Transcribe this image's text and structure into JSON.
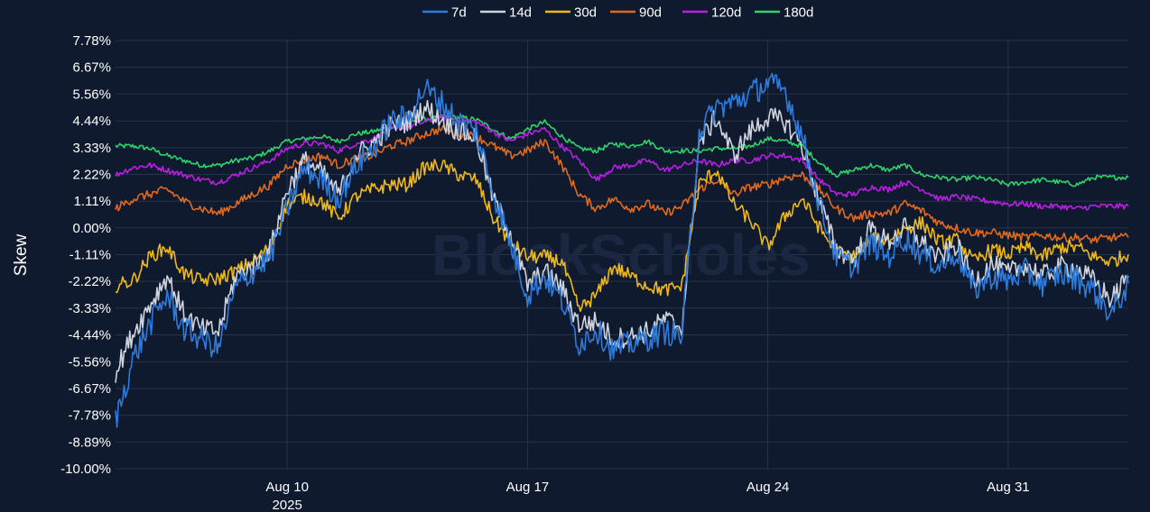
{
  "watermark": "BlockScholes",
  "chart_data": {
    "type": "line",
    "title": "",
    "xlabel": "",
    "ylabel": "Skew",
    "x_start": "2025-08-05",
    "x_end": "2025-09-03",
    "x_range": [
      "2025-08-05T00:00",
      "2025-09-03T12:00"
    ],
    "ylim": [
      -10.0,
      8.0
    ],
    "grid": true,
    "legend_position": "top-center",
    "y_ticks": [
      {
        "value": 7.78,
        "label": "7.78%"
      },
      {
        "value": 6.67,
        "label": "6.67%"
      },
      {
        "value": 5.56,
        "label": "5.56%"
      },
      {
        "value": 4.44,
        "label": "4.44%"
      },
      {
        "value": 3.33,
        "label": "3.33%"
      },
      {
        "value": 2.22,
        "label": "2.22%"
      },
      {
        "value": 1.11,
        "label": "1.11%"
      },
      {
        "value": 0.0,
        "label": "0.00%"
      },
      {
        "value": -1.11,
        "label": "-1.11%"
      },
      {
        "value": -2.22,
        "label": "-2.22%"
      },
      {
        "value": -3.33,
        "label": "-3.33%"
      },
      {
        "value": -4.44,
        "label": "-4.44%"
      },
      {
        "value": -5.56,
        "label": "-5.56%"
      },
      {
        "value": -6.67,
        "label": "-6.67%"
      },
      {
        "value": -7.78,
        "label": "-7.78%"
      },
      {
        "value": -8.89,
        "label": "-8.89%"
      },
      {
        "value": -10.0,
        "label": "-10.00%"
      }
    ],
    "x_ticks": [
      {
        "date": "2025-08-10",
        "label": "Aug 10",
        "sublabel": "2025"
      },
      {
        "date": "2025-08-17",
        "label": "Aug 17",
        "sublabel": ""
      },
      {
        "date": "2025-08-24",
        "label": "Aug 24",
        "sublabel": ""
      },
      {
        "date": "2025-08-31",
        "label": "Aug 31",
        "sublabel": ""
      }
    ],
    "x": [
      "2025-08-05T00:00",
      "2025-08-05T12:00",
      "2025-08-06T00:00",
      "2025-08-06T12:00",
      "2025-08-07T00:00",
      "2025-08-07T12:00",
      "2025-08-08T00:00",
      "2025-08-08T12:00",
      "2025-08-09T00:00",
      "2025-08-09T12:00",
      "2025-08-10T00:00",
      "2025-08-10T12:00",
      "2025-08-11T00:00",
      "2025-08-11T12:00",
      "2025-08-12T00:00",
      "2025-08-12T12:00",
      "2025-08-13T00:00",
      "2025-08-13T12:00",
      "2025-08-14T00:00",
      "2025-08-14T12:00",
      "2025-08-15T00:00",
      "2025-08-15T12:00",
      "2025-08-16T00:00",
      "2025-08-16T12:00",
      "2025-08-17T00:00",
      "2025-08-17T12:00",
      "2025-08-18T00:00",
      "2025-08-18T12:00",
      "2025-08-19T00:00",
      "2025-08-19T12:00",
      "2025-08-20T00:00",
      "2025-08-20T12:00",
      "2025-08-21T00:00",
      "2025-08-21T12:00",
      "2025-08-22T00:00",
      "2025-08-22T12:00",
      "2025-08-23T00:00",
      "2025-08-23T12:00",
      "2025-08-24T00:00",
      "2025-08-24T12:00",
      "2025-08-25T00:00",
      "2025-08-25T12:00",
      "2025-08-26T00:00",
      "2025-08-26T12:00",
      "2025-08-27T00:00",
      "2025-08-27T12:00",
      "2025-08-28T00:00",
      "2025-08-28T12:00",
      "2025-08-29T00:00",
      "2025-08-29T12:00",
      "2025-08-30T00:00",
      "2025-08-30T12:00",
      "2025-08-31T00:00",
      "2025-08-31T12:00",
      "2025-09-01T00:00",
      "2025-09-01T12:00",
      "2025-09-02T00:00",
      "2025-09-02T12:00",
      "2025-09-03T00:00",
      "2025-09-03T12:00"
    ],
    "series": [
      {
        "name": "7d",
        "color": "#2e7bdc",
        "values": [
          -8.0,
          -5.5,
          -4.0,
          -2.8,
          -4.2,
          -4.6,
          -5.0,
          -2.5,
          -1.8,
          -1.2,
          0.8,
          2.5,
          2.0,
          1.2,
          2.6,
          3.3,
          4.4,
          4.6,
          5.8,
          5.2,
          4.4,
          4.0,
          1.5,
          -0.6,
          -2.8,
          -2.0,
          -3.0,
          -4.8,
          -4.2,
          -5.1,
          -4.8,
          -4.6,
          -4.3,
          -4.5,
          4.0,
          5.0,
          5.2,
          5.6,
          6.0,
          5.7,
          3.8,
          1.0,
          -1.2,
          -1.6,
          -0.6,
          -1.2,
          -0.4,
          -1.1,
          -1.6,
          -1.0,
          -2.6,
          -2.0,
          -2.2,
          -1.8,
          -2.3,
          -1.9,
          -2.1,
          -2.6,
          -3.6,
          -2.3
        ]
      },
      {
        "name": "14d",
        "color": "#cfd4de",
        "values": [
          -6.0,
          -4.4,
          -3.2,
          -2.0,
          -3.6,
          -4.2,
          -4.3,
          -2.0,
          -1.6,
          -0.9,
          1.6,
          2.8,
          2.3,
          1.4,
          3.0,
          3.5,
          4.2,
          4.4,
          5.0,
          4.5,
          4.0,
          3.8,
          1.2,
          -0.2,
          -2.4,
          -1.8,
          -2.5,
          -4.0,
          -3.9,
          -4.6,
          -4.5,
          -4.3,
          -3.8,
          -4.1,
          3.5,
          4.6,
          3.0,
          4.0,
          4.6,
          4.4,
          3.4,
          1.1,
          -0.9,
          -1.3,
          0.0,
          -0.6,
          0.0,
          -0.6,
          -1.3,
          -0.7,
          -2.2,
          -1.5,
          -1.9,
          -1.5,
          -2.0,
          -1.6,
          -1.7,
          -2.2,
          -3.0,
          -2.0
        ]
      },
      {
        "name": "30d",
        "color": "#eeb817",
        "values": [
          -2.4,
          -2.2,
          -1.2,
          -0.8,
          -1.9,
          -2.2,
          -2.1,
          -1.8,
          -1.4,
          -0.8,
          1.0,
          1.3,
          1.1,
          0.4,
          1.3,
          1.6,
          1.8,
          1.8,
          2.5,
          2.6,
          2.2,
          2.0,
          0.4,
          -0.6,
          -1.2,
          -1.2,
          -1.4,
          -3.4,
          -2.8,
          -1.6,
          -2.0,
          -2.4,
          -2.6,
          -2.4,
          1.8,
          2.4,
          1.0,
          0.3,
          -0.8,
          0.5,
          1.2,
          0.0,
          -1.0,
          -1.2,
          -0.5,
          -0.5,
          0.0,
          0.2,
          -0.6,
          -0.5,
          -1.4,
          -0.9,
          -1.1,
          -0.8,
          -1.2,
          -0.8,
          -0.8,
          -1.2,
          -1.4,
          -1.1
        ]
      },
      {
        "name": "90d",
        "color": "#e26a1c",
        "values": [
          0.8,
          1.2,
          1.4,
          1.6,
          1.1,
          0.8,
          0.6,
          1.0,
          1.4,
          1.8,
          2.6,
          2.8,
          3.0,
          2.6,
          2.9,
          3.0,
          3.4,
          3.6,
          3.9,
          4.1,
          3.9,
          3.8,
          3.4,
          3.0,
          3.2,
          3.6,
          2.6,
          1.4,
          0.8,
          1.2,
          0.8,
          1.0,
          0.6,
          0.9,
          1.6,
          2.0,
          1.4,
          1.7,
          1.8,
          2.1,
          2.2,
          1.6,
          0.8,
          0.4,
          0.6,
          0.6,
          1.0,
          0.7,
          0.2,
          0.0,
          -0.2,
          -0.2,
          -0.3,
          -0.4,
          -0.3,
          -0.4,
          -0.4,
          -0.5,
          -0.4,
          -0.4
        ]
      },
      {
        "name": "120d",
        "color": "#b91fe2",
        "values": [
          2.2,
          2.5,
          2.6,
          2.4,
          2.2,
          2.0,
          1.9,
          2.2,
          2.5,
          2.8,
          3.3,
          3.5,
          3.5,
          3.2,
          3.5,
          3.7,
          4.1,
          4.2,
          4.4,
          4.6,
          4.5,
          4.4,
          4.0,
          3.6,
          3.9,
          4.1,
          3.4,
          2.8,
          2.0,
          2.5,
          2.6,
          2.8,
          2.4,
          2.6,
          2.8,
          2.6,
          2.8,
          2.8,
          3.0,
          3.0,
          2.8,
          2.0,
          1.4,
          1.4,
          1.7,
          1.6,
          1.9,
          1.6,
          1.2,
          1.3,
          1.2,
          1.1,
          1.0,
          1.0,
          0.9,
          0.9,
          0.8,
          0.9,
          0.9,
          0.9
        ]
      },
      {
        "name": "180d",
        "color": "#2fd36a",
        "values": [
          3.4,
          3.4,
          3.3,
          3.0,
          2.8,
          2.6,
          2.6,
          2.8,
          2.9,
          3.2,
          3.6,
          3.7,
          3.8,
          3.6,
          3.9,
          4.0,
          4.2,
          4.4,
          4.5,
          4.6,
          4.6,
          4.5,
          4.1,
          3.7,
          4.1,
          4.4,
          3.8,
          3.3,
          3.2,
          3.5,
          3.4,
          3.6,
          3.2,
          3.2,
          3.2,
          3.3,
          3.3,
          3.4,
          3.7,
          3.6,
          3.4,
          2.7,
          2.2,
          2.4,
          2.6,
          2.4,
          2.6,
          2.2,
          2.1,
          2.0,
          2.1,
          2.0,
          1.8,
          1.9,
          2.0,
          1.9,
          1.8,
          2.1,
          2.1,
          2.1
        ]
      }
    ]
  }
}
